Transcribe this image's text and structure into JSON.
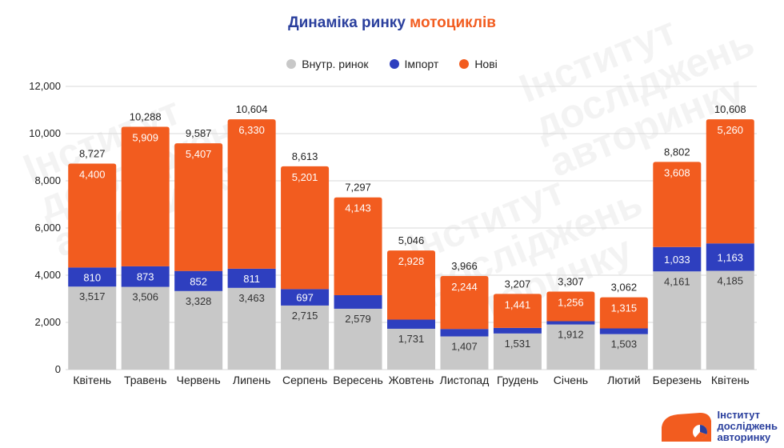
{
  "title": {
    "main": "Динаміка ринку",
    "accent": "мотоциклів"
  },
  "legend": [
    {
      "label": "Внутр. ринок",
      "color": "#c8c8c8"
    },
    {
      "label": "Імпорт",
      "color": "#2e3fbf"
    },
    {
      "label": "Нові",
      "color": "#f25c1f"
    }
  ],
  "watermark": "Інститут досліджень авторинку",
  "logo": {
    "line1": "Інститут",
    "line2": "досліджень",
    "line3": "авторинку"
  },
  "chart_data": {
    "type": "bar",
    "stacked": true,
    "categories": [
      "Квітень",
      "Травень",
      "Червень",
      "Липень",
      "Серпень",
      "Вересень",
      "Жовтень",
      "Листопад",
      "Грудень",
      "Січень",
      "Лютий",
      "Березень",
      "Квітень"
    ],
    "series": [
      {
        "name": "Внутр. ринок",
        "color": "#c8c8c8",
        "values": [
          3517,
          3506,
          3328,
          3463,
          2715,
          2579,
          1731,
          1407,
          1531,
          1912,
          1503,
          4161,
          4185
        ]
      },
      {
        "name": "Імпорт",
        "color": "#2e3fbf",
        "values": [
          810,
          873,
          852,
          811,
          697,
          575,
          387,
          315,
          235,
          139,
          244,
          1033,
          1163
        ]
      },
      {
        "name": "Нові",
        "color": "#f25c1f",
        "values": [
          4400,
          5909,
          5407,
          6330,
          5201,
          4143,
          2928,
          2244,
          1441,
          1256,
          1315,
          3608,
          5260
        ]
      }
    ],
    "import_labels": [
      "810",
      "873",
      "852",
      "811",
      "697",
      "",
      "",
      "",
      "",
      "",
      "",
      "1,033",
      "1,163"
    ],
    "totals": [
      8727,
      10288,
      9587,
      10604,
      8613,
      7297,
      5046,
      3966,
      3207,
      3307,
      3062,
      8802,
      10608
    ],
    "ylim": [
      0,
      12000
    ],
    "yticks": [
      "0",
      "2,000",
      "4,000",
      "6,000",
      "8,000",
      "10,000",
      "12,000"
    ],
    "grid": true,
    "legend_position": "top-center"
  }
}
